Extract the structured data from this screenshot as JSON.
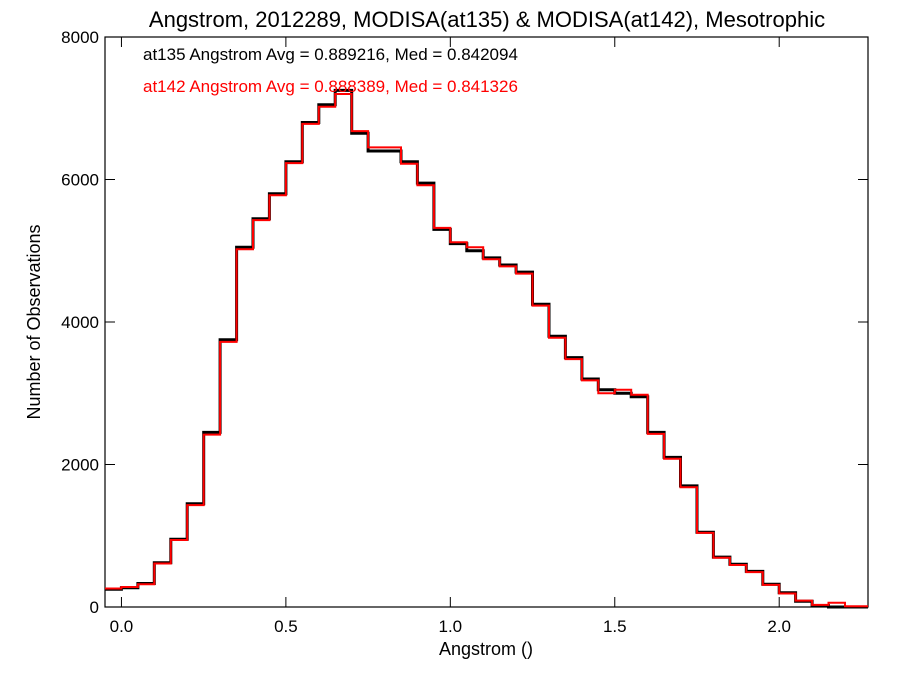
{
  "chart_data": {
    "type": "line",
    "title": "Angstrom, 2012289, MODISA(at135) & MODISA(at142), Mesotrophic",
    "xlabel": "Angstrom ()",
    "ylabel": "Number of Observations",
    "xlim": [
      -0.05,
      2.27
    ],
    "ylim": [
      0,
      8000
    ],
    "xticks": [
      0.0,
      0.5,
      1.0,
      1.5,
      2.0
    ],
    "xtick_labels": [
      "0.0",
      "0.5",
      "1.0",
      "1.5",
      "2.0"
    ],
    "yticks": [
      0,
      2000,
      4000,
      6000,
      8000
    ],
    "ytick_labels": [
      "0",
      "2000",
      "4000",
      "6000",
      "8000"
    ],
    "step": "histogram",
    "grid": false,
    "annotations": [
      {
        "text": "at135 Angstrom Avg = 0.889216, Med = 0.842094",
        "color": "#000000"
      },
      {
        "text": "at142 Angstrom Avg = 0.888389, Med = 0.841326",
        "color": "#ff0000"
      }
    ],
    "series": [
      {
        "name": "at135",
        "color": "#000000",
        "x": [
          -0.05,
          0.0,
          0.05,
          0.1,
          0.15,
          0.2,
          0.25,
          0.3,
          0.35,
          0.4,
          0.45,
          0.5,
          0.55,
          0.6,
          0.65,
          0.7,
          0.75,
          0.8,
          0.85,
          0.9,
          0.95,
          1.0,
          1.05,
          1.1,
          1.15,
          1.2,
          1.25,
          1.3,
          1.35,
          1.4,
          1.45,
          1.5,
          1.55,
          1.6,
          1.65,
          1.7,
          1.75,
          1.8,
          1.85,
          1.9,
          1.95,
          2.0,
          2.05,
          2.1,
          2.15,
          2.2,
          2.27
        ],
        "y": [
          250,
          270,
          330,
          620,
          950,
          1450,
          2450,
          3750,
          5050,
          5450,
          5800,
          6250,
          6800,
          7050,
          7250,
          6650,
          6400,
          6400,
          6250,
          5950,
          5300,
          5100,
          5000,
          4900,
          4800,
          4700,
          4250,
          3800,
          3500,
          3200,
          3050,
          3000,
          2950,
          2450,
          2100,
          1700,
          1050,
          700,
          600,
          500,
          320,
          200,
          80,
          20,
          0,
          0,
          0
        ]
      },
      {
        "name": "at142",
        "color": "#ff0000",
        "x": [
          -0.05,
          0.0,
          0.05,
          0.1,
          0.15,
          0.2,
          0.25,
          0.3,
          0.35,
          0.4,
          0.45,
          0.5,
          0.55,
          0.6,
          0.65,
          0.7,
          0.75,
          0.8,
          0.85,
          0.9,
          0.95,
          1.0,
          1.05,
          1.1,
          1.15,
          1.2,
          1.25,
          1.3,
          1.35,
          1.4,
          1.45,
          1.5,
          1.55,
          1.6,
          1.65,
          1.7,
          1.75,
          1.8,
          1.85,
          1.9,
          1.95,
          2.0,
          2.05,
          2.1,
          2.15,
          2.2,
          2.27
        ],
        "y": [
          260,
          280,
          320,
          610,
          940,
          1430,
          2420,
          3720,
          5020,
          5430,
          5780,
          6230,
          6780,
          7020,
          7200,
          6680,
          6450,
          6450,
          6220,
          5920,
          5320,
          5120,
          5050,
          4880,
          4780,
          4680,
          4230,
          3780,
          3480,
          3180,
          3000,
          3050,
          2980,
          2430,
          2080,
          1680,
          1040,
          690,
          590,
          490,
          310,
          190,
          90,
          30,
          60,
          10,
          0
        ]
      }
    ]
  }
}
